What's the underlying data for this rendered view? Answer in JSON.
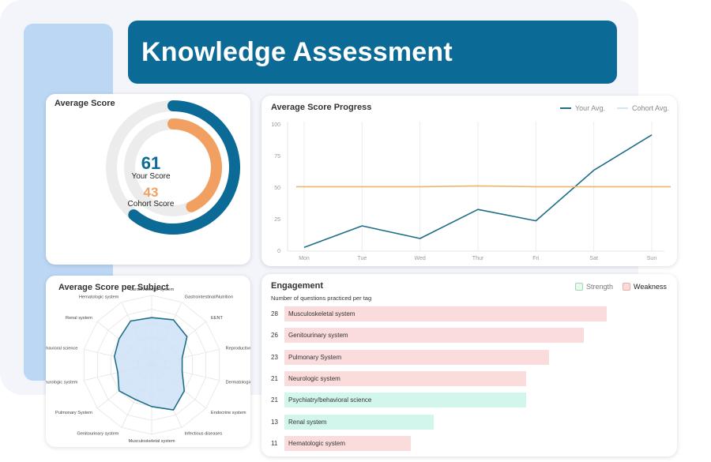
{
  "banner": {
    "title": "Knowledge Assessment"
  },
  "avg_score": {
    "title": "Average Score",
    "your_score": 61,
    "your_label": "Your Score",
    "cohort_score": 43,
    "cohort_label": "Cohort Score",
    "colors": {
      "your": "#0b6a96",
      "cohort": "#f2a062",
      "track": "#ececec"
    }
  },
  "progress": {
    "title": "Average Score Progress",
    "legend": {
      "your": "Your Avg.",
      "cohort": "Cohort Avg."
    },
    "colors": {
      "your": "#1f6e88",
      "cohort": "#f0b36a"
    },
    "chart_data": {
      "type": "line",
      "categories": [
        "Mon",
        "Tue",
        "Wed",
        "Thur",
        "Fri",
        "Sat",
        "Sun"
      ],
      "yticks": [
        0,
        25,
        50,
        75,
        100
      ],
      "ylim": [
        0,
        100
      ],
      "grid": "vertical",
      "series": [
        {
          "name": "Your Avg.",
          "values": [
            3,
            20,
            10,
            33,
            24,
            64,
            92
          ]
        },
        {
          "name": "Cohort Avg.",
          "values": [
            51,
            51,
            51,
            51,
            51,
            51,
            51
          ]
        }
      ]
    }
  },
  "subject": {
    "title": "Average Score per Subject",
    "chart_data": {
      "type": "radar",
      "labels": [
        "Cardiovascular system",
        "Gastrointestinal/Nutrition",
        "EENT",
        "Reproductive system",
        "Dermatologic system",
        "Endocrine system",
        "Infectious diseases",
        "Musculoskeletal system",
        "Genitourinary system",
        "Pulmonary System",
        "Neurologic system",
        "Psychiatry/behavioral science",
        "Renal system",
        "Hematologic system"
      ],
      "values": [
        0.68,
        0.72,
        0.65,
        0.45,
        0.45,
        0.6,
        0.72,
        0.6,
        0.55,
        0.6,
        0.5,
        0.55,
        0.6,
        0.7
      ],
      "fill": "#cfe2f8",
      "stroke": "#1f6e88"
    }
  },
  "engagement": {
    "title": "Engagement",
    "subtitle": "Number of questions practiced per tag",
    "legend": {
      "strength": "Strength",
      "weakness": "Weakness"
    },
    "colors": {
      "strength": "#d2f6ec",
      "weakness": "#fbdcdc"
    },
    "max": 28,
    "rows": [
      {
        "count": "28",
        "value": 28,
        "label": "Musculoskeletal system",
        "type": "weakness"
      },
      {
        "count": "26",
        "value": 26,
        "label": "Genitourinary system",
        "type": "weakness"
      },
      {
        "count": "23",
        "value": 23,
        "label": "Pulmonary System",
        "type": "weakness"
      },
      {
        "count": "21",
        "value": 21,
        "label": "Neurologic system",
        "type": "weakness"
      },
      {
        "count": "21",
        "value": 21,
        "label": "Psychiatry/behavioral science",
        "type": "strength"
      },
      {
        "count": "13",
        "value": 13,
        "label": "Renal system",
        "type": "strength"
      },
      {
        "count": "11",
        "value": 11,
        "label": "Hematologic system",
        "type": "weakness"
      }
    ]
  }
}
